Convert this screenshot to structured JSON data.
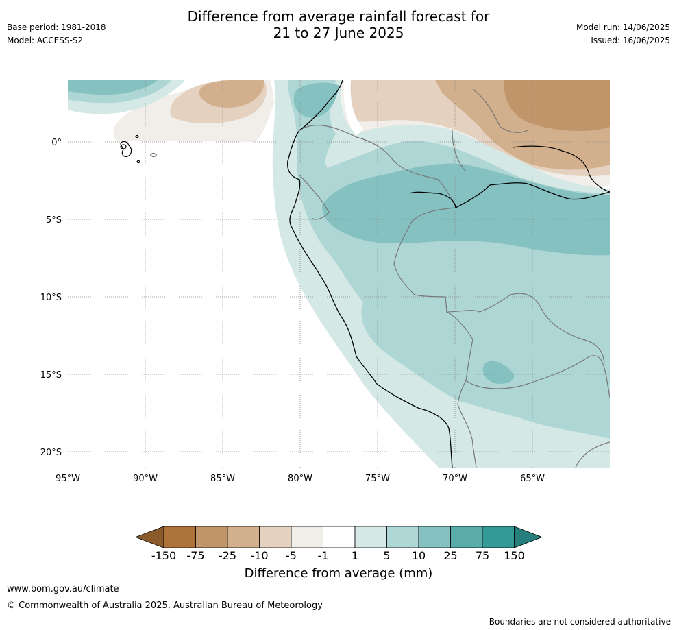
{
  "header": {
    "title_line1": "Difference from average rainfall forecast for",
    "title_line2": "21 to 27 June 2025",
    "base_period": "Base period: 1981-2018",
    "model": "Model: ACCESS-S2",
    "model_run": "Model run: 14/06/2025",
    "issued": "Issued: 16/06/2025"
  },
  "map": {
    "region": "Western South America",
    "lat_labels": [
      "0°",
      "5°S",
      "10°S",
      "15°S",
      "20°S"
    ],
    "lon_labels": [
      "95°W",
      "90°W",
      "85°W",
      "80°W",
      "75°W",
      "70°W",
      "65°W"
    ],
    "colors": {
      "dry_strong": "#c0956a",
      "dry_mid": "#d2b08d",
      "dry_weak": "#e4d1c0",
      "dry_faint": "#f1ede8",
      "neutral": "#ffffff",
      "wet_faint": "#d4e8e6",
      "wet_weak": "#aed6d5",
      "wet_mid": "#84c1c0",
      "coast": "#000000",
      "border": "#777777"
    }
  },
  "colorbar": {
    "labels": [
      "-150",
      "-75",
      "-25",
      "-10",
      "-5",
      "-1",
      "1",
      "5",
      "10",
      "25",
      "75",
      "150"
    ],
    "colors": [
      "#8a5a2b",
      "#ad733b",
      "#c0956a",
      "#d2b08d",
      "#e4d1c0",
      "#f1ede8",
      "#ffffff",
      "#d4e8e6",
      "#aed6d5",
      "#84c1c0",
      "#5aacab",
      "#359996",
      "#267f7c"
    ],
    "title": "Difference from average (mm)"
  },
  "footer": {
    "website": "www.bom.gov.au/climate",
    "copyright": "© Commonwealth of Australia 2025, Australian Bureau of Meteorology",
    "disclaimer": "Boundaries are not considered authoritative"
  }
}
